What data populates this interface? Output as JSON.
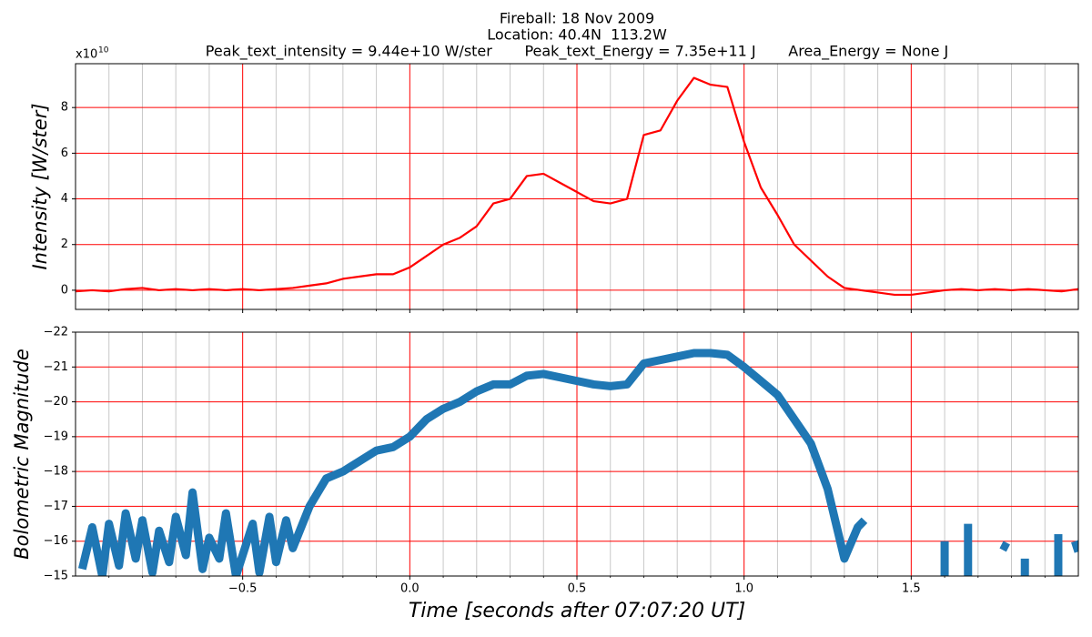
{
  "chart_data": [
    {
      "type": "line",
      "title": [
        "Fireball: 18 Nov 2009",
        "Location: 40.4N  113.2W",
        "Peak_text_intensity = 9.44e+10 W/ster       Peak_text_Energy = 7.35e+11 J       Area_Energy = None J"
      ],
      "y_label": "Intensity [W/ster]",
      "y_offset": {
        "base": "x10",
        "exponent": "10"
      },
      "xlim": [
        -1,
        2
      ],
      "ylim": [
        -0.84,
        9.92
      ],
      "xticks": [
        -0.5,
        0,
        0.5,
        1,
        1.5
      ],
      "minor_xticks": [
        -0.9,
        -0.8,
        -0.7,
        -0.6,
        -0.4,
        -0.3,
        -0.2,
        -0.1,
        0.1,
        0.2,
        0.3,
        0.4,
        0.6,
        0.7,
        0.8,
        0.9,
        1.1,
        1.2,
        1.3,
        1.4,
        1.6,
        1.7,
        1.8,
        1.9
      ],
      "yticks": [
        0,
        2,
        4,
        6,
        8
      ],
      "grid": true,
      "x": [
        -1,
        -0.95,
        -0.9,
        -0.85,
        -0.8,
        -0.75,
        -0.7,
        -0.65,
        -0.6,
        -0.55,
        -0.5,
        -0.45,
        -0.4,
        -0.35,
        -0.3,
        -0.25,
        -0.2,
        -0.15,
        -0.1,
        -0.05,
        0,
        0.05,
        0.1,
        0.15,
        0.2,
        0.25,
        0.3,
        0.35,
        0.4,
        0.45,
        0.5,
        0.55,
        0.6,
        0.65,
        0.7,
        0.75,
        0.8,
        0.85,
        0.9,
        0.95,
        1,
        1.05,
        1.1,
        1.15,
        1.2,
        1.25,
        1.3,
        1.35,
        1.4,
        1.45,
        1.5,
        1.55,
        1.6,
        1.65,
        1.7,
        1.75,
        1.8,
        1.85,
        1.9,
        1.95,
        2
      ],
      "series": [
        {
          "name": "Intensity",
          "color": "#ff0000",
          "values": [
            -0.05,
            0.0,
            -0.05,
            0.05,
            0.1,
            0.0,
            0.05,
            0.0,
            0.05,
            0.0,
            0.05,
            0.0,
            0.05,
            0.1,
            0.2,
            0.3,
            0.5,
            0.6,
            0.7,
            0.7,
            1.0,
            1.5,
            2.0,
            2.3,
            2.8,
            3.8,
            4.0,
            5.0,
            5.1,
            4.7,
            4.3,
            3.9,
            3.8,
            4.0,
            6.8,
            7.0,
            8.3,
            9.3,
            9.0,
            8.9,
            6.5,
            4.5,
            3.3,
            2.0,
            1.3,
            0.6,
            0.1,
            0.0,
            -0.1,
            -0.2,
            -0.2,
            -0.1,
            0.0,
            0.05,
            0.0,
            0.05,
            0.0,
            0.05,
            0.0,
            -0.05,
            0.05
          ]
        }
      ]
    },
    {
      "type": "line",
      "x_label": "Time [seconds after 07:07:20 UT]",
      "y_label": "Bolometric Magnitude",
      "xlim": [
        -1,
        2
      ],
      "ylim": [
        -15,
        -22
      ],
      "xticks": [
        {
          "value": -0.5,
          "label": "−0.5"
        },
        {
          "value": 0,
          "label": "0.0"
        },
        {
          "value": 0.5,
          "label": "0.5"
        },
        {
          "value": 1,
          "label": "1.0"
        },
        {
          "value": 1.5,
          "label": "1.5"
        }
      ],
      "minor_xticks": [
        -0.9,
        -0.8,
        -0.7,
        -0.6,
        -0.4,
        -0.3,
        -0.2,
        -0.1,
        0.1,
        0.2,
        0.3,
        0.4,
        0.6,
        0.7,
        0.8,
        0.9,
        1.1,
        1.2,
        1.3,
        1.4,
        1.6,
        1.7,
        1.8,
        1.9
      ],
      "yticks": [
        {
          "value": -22,
          "label": "−22"
        },
        {
          "value": -21,
          "label": "−21"
        },
        {
          "value": -20,
          "label": "−20"
        },
        {
          "value": -19,
          "label": "−19"
        },
        {
          "value": -18,
          "label": "−18"
        },
        {
          "value": -17,
          "label": "−17"
        },
        {
          "value": -16,
          "label": "−16"
        },
        {
          "value": -15,
          "label": "−15"
        }
      ],
      "grid": true,
      "x": [
        -0.98,
        -0.95,
        -0.92,
        -0.9,
        -0.87,
        -0.85,
        -0.82,
        -0.8,
        -0.77,
        -0.75,
        -0.72,
        -0.7,
        -0.67,
        -0.65,
        -0.62,
        -0.6,
        -0.57,
        -0.55,
        -0.52,
        -0.5,
        -0.47,
        -0.45,
        -0.42,
        -0.4,
        -0.37,
        -0.35,
        -0.3,
        -0.25,
        -0.2,
        -0.15,
        -0.1,
        -0.05,
        0,
        0.05,
        0.1,
        0.15,
        0.2,
        0.25,
        0.3,
        0.35,
        0.4,
        0.45,
        0.5,
        0.55,
        0.6,
        0.65,
        0.7,
        0.75,
        0.8,
        0.85,
        0.9,
        0.95,
        1,
        1.05,
        1.1,
        1.15,
        1.2,
        1.25,
        1.3,
        1.34,
        1.36,
        1.45,
        1.6,
        1.6,
        1.63,
        1.67,
        1.67,
        1.72,
        1.77,
        1.79,
        1.82,
        1.84,
        1.84,
        1.9,
        1.94,
        1.94,
        1.97,
        1.99,
        2
      ],
      "series": [
        {
          "name": "Bolometric Magnitude",
          "color": "#1f77b4",
          "values": [
            -15.2,
            -16.4,
            -15,
            -16.5,
            -15.3,
            -16.8,
            -15.5,
            -16.6,
            -15.1,
            -16.3,
            -15.4,
            -16.7,
            -15.6,
            -17.4,
            -15.2,
            -16.1,
            -15.5,
            -16.8,
            -15,
            -15.6,
            -16.5,
            -15.1,
            -16.7,
            -15.4,
            -16.6,
            -15.8,
            -17.0,
            -17.8,
            -18.0,
            -18.3,
            -18.6,
            -18.7,
            -19.0,
            -19.5,
            -19.8,
            -20.0,
            -20.3,
            -20.5,
            -20.5,
            -20.75,
            -20.8,
            -20.7,
            -20.6,
            -20.5,
            -20.45,
            -20.5,
            -21.1,
            -21.2,
            -21.3,
            -21.4,
            -21.4,
            -21.35,
            -21.0,
            -20.6,
            -20.2,
            -19.5,
            -18.8,
            -17.5,
            -15.5,
            -16.4,
            -16.6,
            null,
            -16.0,
            -15.0,
            null,
            -16.5,
            -15.0,
            null,
            -15.9,
            -15.8,
            null,
            -15.5,
            -15.0,
            null,
            -16.2,
            -15.0,
            null,
            -16.0,
            -15.7
          ]
        }
      ]
    }
  ]
}
